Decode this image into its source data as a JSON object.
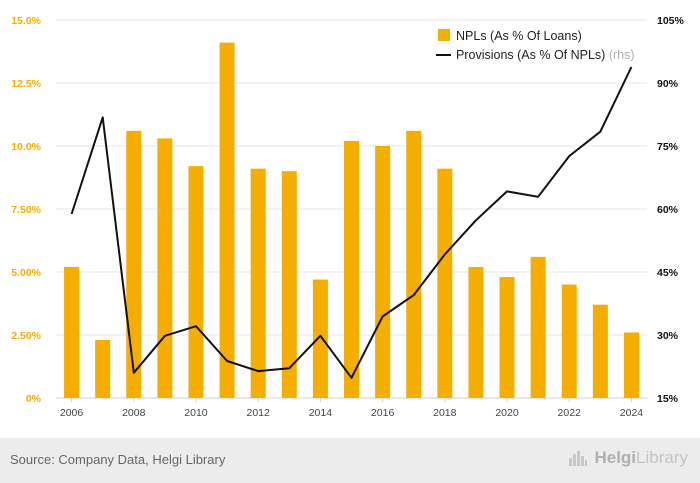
{
  "chart_data": {
    "type": "bar",
    "categories": [
      "2006",
      "2007",
      "2008",
      "2009",
      "2010",
      "2011",
      "2012",
      "2013",
      "2014",
      "2015",
      "2016",
      "2017",
      "2018",
      "2019",
      "2020",
      "2021",
      "2022",
      "2023",
      "2024"
    ],
    "x_tick_labels": [
      "2006",
      "2008",
      "2010",
      "2012",
      "2014",
      "2016",
      "2018",
      "2020",
      "2022",
      "2024"
    ],
    "series": [
      {
        "name": "NPLs (As % Of Loans)",
        "type": "bar",
        "axis": "left",
        "values": [
          5.2,
          2.3,
          10.6,
          10.3,
          9.2,
          14.1,
          9.1,
          9.0,
          4.7,
          10.2,
          10.0,
          10.6,
          9.1,
          5.2,
          4.8,
          5.6,
          4.5,
          3.7,
          2.6
        ]
      },
      {
        "name": "Provisions (As % Of NPLs)",
        "name_suffix": "(rhs)",
        "type": "line",
        "axis": "right",
        "values": [
          58.8,
          81.8,
          21.0,
          29.8,
          32.1,
          23.8,
          21.4,
          22.1,
          29.8,
          19.8,
          34.4,
          39.5,
          49.2,
          57.3,
          64.2,
          62.9,
          72.6,
          78.4,
          93.8
        ]
      }
    ],
    "y_left": {
      "ylim": [
        0,
        15
      ],
      "ticks": [
        "0%",
        "2.50%",
        "5.00%",
        "7.50%",
        "10.0%",
        "12.5%",
        "15.0%"
      ]
    },
    "y_right": {
      "ylim": [
        15,
        105
      ],
      "ticks": [
        "15%",
        "30%",
        "45%",
        "60%",
        "75%",
        "90%",
        "105%"
      ]
    },
    "grid": true,
    "legend": "top-right",
    "colors": {
      "bar": "#f5ad00",
      "line": "#111111",
      "left_axis_text": "#f5ad00",
      "right_axis_text": "#111111",
      "grid": "#e6e6e6"
    }
  },
  "footer": {
    "source": "Source: Company Data, Helgi Library",
    "brand_bold": "Helgi",
    "brand_thin": "Library",
    "brand_icon": "city-skyline-icon"
  }
}
